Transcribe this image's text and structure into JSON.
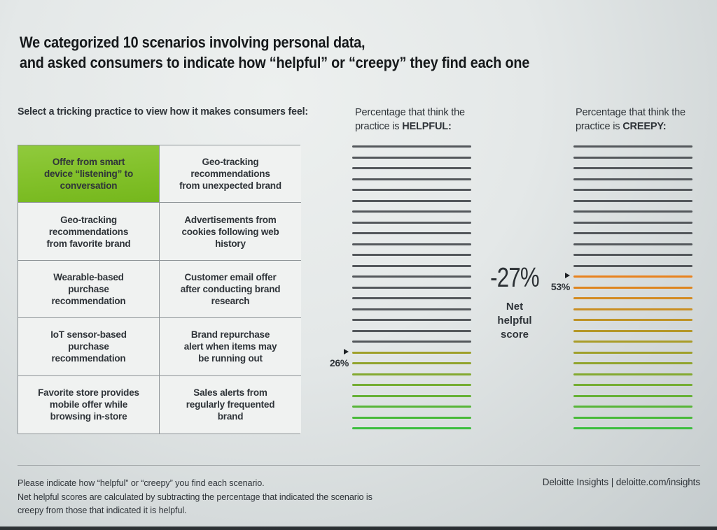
{
  "title": "We categorized 10 scenarios involving personal data,\nand asked consumers to indicate how “helpful” or “creepy” they find each one",
  "selector": {
    "label": "Select a tricking practice to view how it makes consumers feel:",
    "options": [
      {
        "label": "Offer from smart\ndevice “listening” to\nconversation",
        "selected": true
      },
      {
        "label": "Geo-tracking\nrecommendations\nfrom unexpected brand",
        "selected": false
      },
      {
        "label": "Geo-tracking\nrecommendations\nfrom favorite brand",
        "selected": false
      },
      {
        "label": "Advertisements from\ncookies following web\nhistory",
        "selected": false
      },
      {
        "label": "Wearable-based\npurchase\nrecommendation",
        "selected": false
      },
      {
        "label": "Customer email offer\nafter conducting brand\nresearch",
        "selected": false
      },
      {
        "label": "IoT sensor-based\npurchase\nrecommendation",
        "selected": false
      },
      {
        "label": "Brand repurchase\nalert when items may\nbe running out",
        "selected": false
      },
      {
        "label": "Favorite store provides\nmobile offer while\nbrowsing in-store",
        "selected": false
      },
      {
        "label": "Sales alerts from\nregularly frequented\nbrand",
        "selected": false
      }
    ]
  },
  "chart_data": [
    {
      "type": "bar",
      "name": "helpful",
      "header_line1": "Percentage that think the",
      "header_line2_prefix": "practice is ",
      "header_line2_bold": "HELPFUL:",
      "value_pct": 26,
      "marker_label": "26%",
      "total_lines": 27,
      "colored_lines": 8
    },
    {
      "type": "bar",
      "name": "creepy",
      "header_line1": "Percentage that think the",
      "header_line2_prefix": "practice is ",
      "header_line2_bold": "CREEPY:",
      "value_pct": 53,
      "marker_label": "53%",
      "total_lines": 27,
      "colored_lines": 15
    }
  ],
  "net_score": {
    "value": "-27%",
    "label": "Net\nhelpful\nscore"
  },
  "footer": {
    "note": "Please indicate how “helpful” or “creepy” you find each scenario.\nNet helpful scores are calculated by subtracting the percentage that indicated the scenario is\ncreepy from those that indicated it is helpful.",
    "source": "Deloitte Insights | deloitte.com/insights"
  },
  "colors": {
    "selected_green_top": "#90ca3d",
    "selected_green_bottom": "#75b71c",
    "line_gray": "#54585c",
    "gradient": {
      "start_index": 12,
      "stops": [
        [
          0,
          "#E8821E"
        ],
        [
          0.5,
          "#9FA02B"
        ],
        [
          1,
          "#3CBE3E"
        ]
      ]
    }
  }
}
